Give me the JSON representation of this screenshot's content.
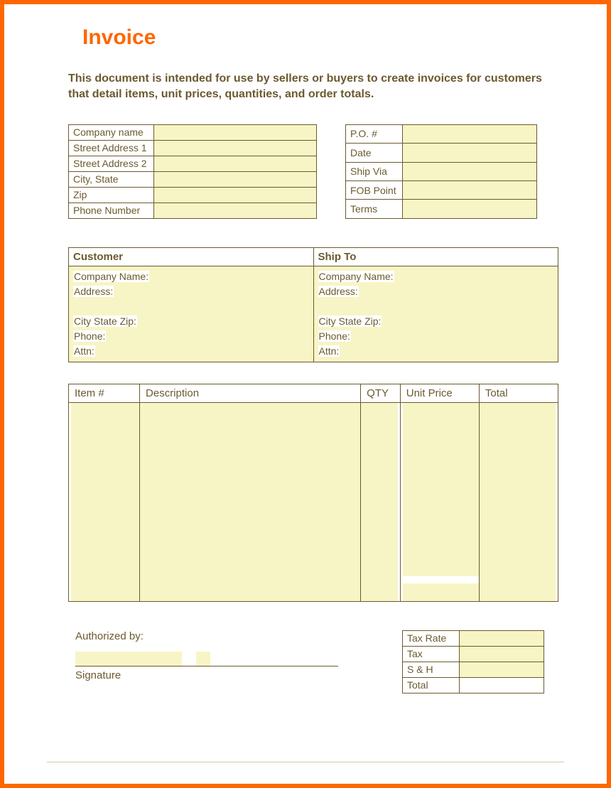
{
  "colors": {
    "frame_border": "#ff6600",
    "title_color": "#ff6600",
    "text_color": "#6b5a2e",
    "cell_border": "#6b5a2e",
    "fill_yellow": "#f7f5c5",
    "background": "#ffffff",
    "footer_line": "#d0c8a8"
  },
  "title": "Invoice",
  "description": "This document is intended for use by sellers or buyers to create invoices for customers that detail items, unit prices, quantities, and order totals.",
  "company_fields": [
    "Company name",
    "Street Address 1",
    "Street Address 2",
    "City, State",
    "Zip",
    "Phone Number"
  ],
  "po_fields": [
    "P.O. #",
    "Date",
    "Ship Via",
    "FOB Point",
    "Terms"
  ],
  "customer_header": "Customer",
  "shipto_header": "Ship To",
  "address_labels": {
    "company": "Company Name:",
    "address": "Address:",
    "csz": "City State Zip:",
    "phone": "Phone:",
    "attn": "Attn:"
  },
  "item_columns": {
    "item": "Item #",
    "description": "Description",
    "qty": "QTY",
    "unit_price": "Unit Price",
    "total": "Total"
  },
  "authorized_by": "Authorized by:",
  "signature": "Signature",
  "totals_fields": [
    "Tax Rate",
    "Tax",
    "S & H",
    "Total"
  ]
}
